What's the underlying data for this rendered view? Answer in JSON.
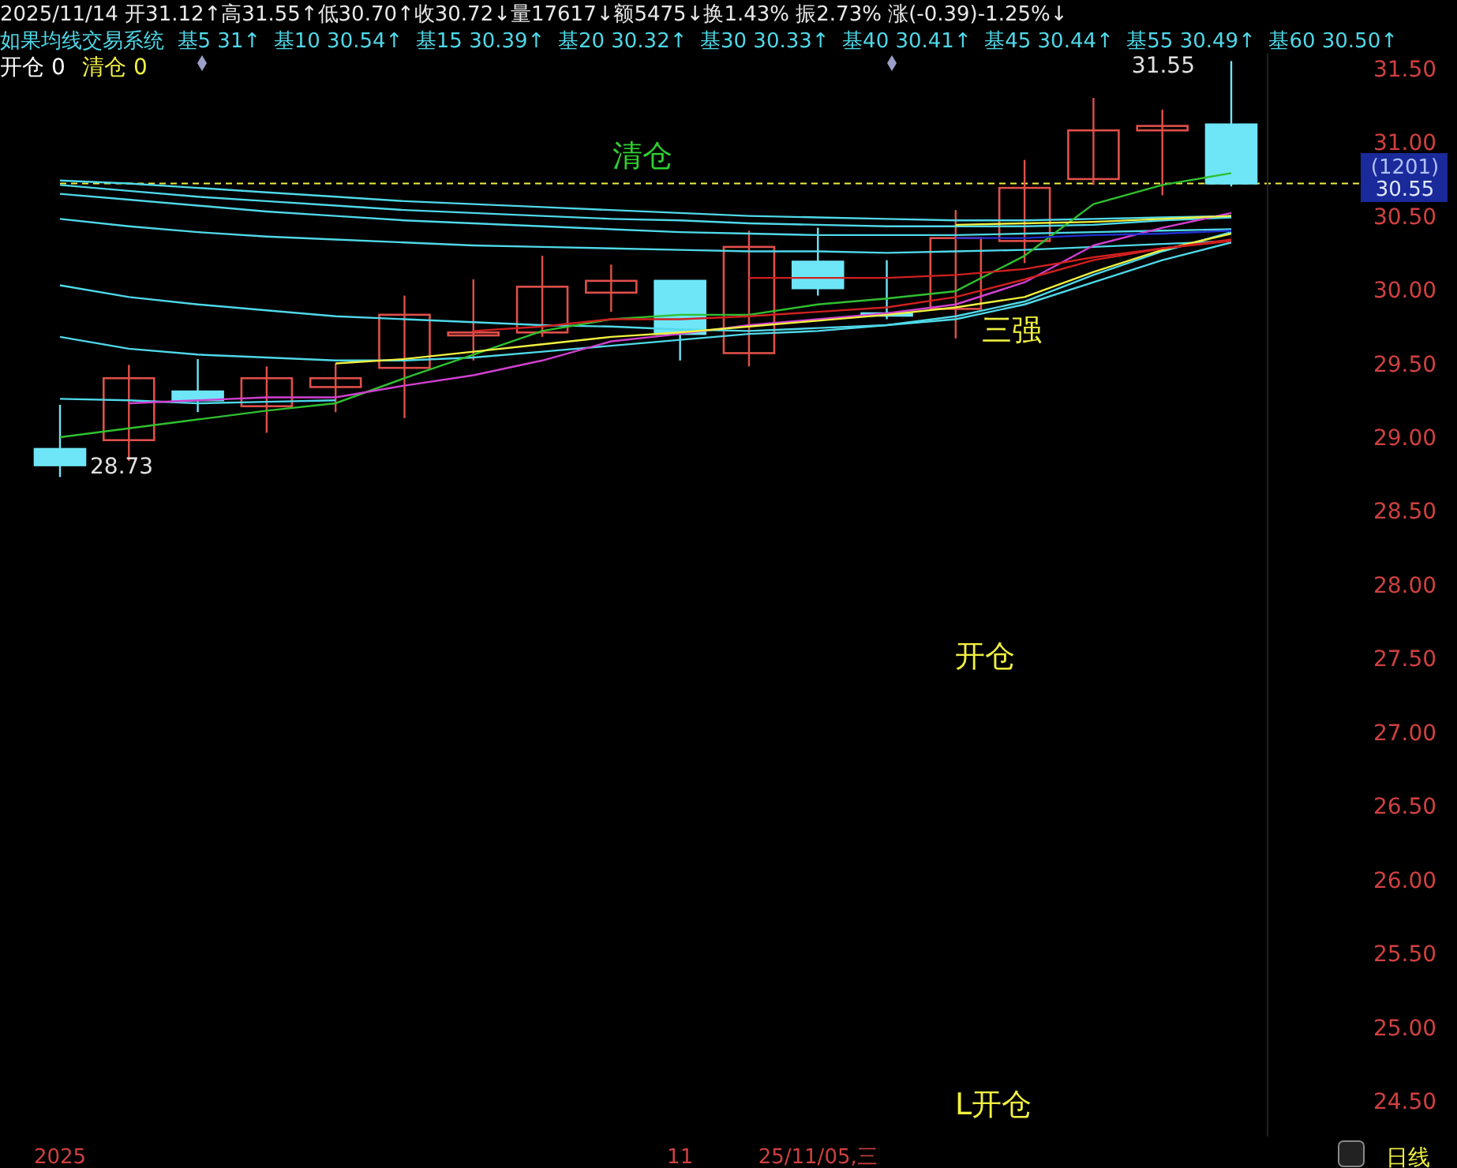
{
  "chart_data": {
    "type": "candlestick",
    "title": "2025/11/14 开31.12↑高31.55↑低30.70↑收30.72↓量17617↓额5475↓换1.43% 振2.73% 涨(-0.39)-1.25%↓",
    "subtitle": "如果均线交易系统  基5 31↑  基10 30.54↑  基15 30.39↑  基20 30.32↑  基30 30.33↑  基40 30.41↑  基45 30.44↑  基55 30.49↑  基60 30.50↑",
    "categories": [
      "2025",
      null,
      null,
      null,
      null,
      null,
      null,
      null,
      null,
      "11",
      null,
      "25/11/05,三",
      null,
      null,
      null,
      null,
      null,
      null
    ],
    "ohlc": [
      [
        28.92,
        29.22,
        28.73,
        28.81
      ],
      [
        28.98,
        29.49,
        28.84,
        29.4
      ],
      [
        29.31,
        29.53,
        29.17,
        29.25
      ],
      [
        29.21,
        29.48,
        29.03,
        29.4
      ],
      [
        29.34,
        29.5,
        29.17,
        29.4
      ],
      [
        29.47,
        29.96,
        29.13,
        29.83
      ],
      [
        29.69,
        30.07,
        29.52,
        29.71
      ],
      [
        29.71,
        30.23,
        29.68,
        30.02
      ],
      [
        29.98,
        30.17,
        29.85,
        30.06
      ],
      [
        30.06,
        30.06,
        29.52,
        29.7
      ],
      [
        29.57,
        30.4,
        29.48,
        30.29
      ],
      [
        30.19,
        30.42,
        29.96,
        30.01
      ],
      [
        29.84,
        30.2,
        29.8,
        29.83
      ],
      [
        29.87,
        30.54,
        29.67,
        30.35
      ],
      [
        30.33,
        30.88,
        30.18,
        30.69
      ],
      [
        30.75,
        31.3,
        30.71,
        31.08
      ],
      [
        31.08,
        31.22,
        30.64,
        31.11
      ],
      [
        31.12,
        31.55,
        30.7,
        30.72
      ]
    ],
    "colors": [
      "#6ee6f8",
      "#e0504a",
      "#6ee6f8",
      "#e0504a",
      "#e0504a",
      "#e0504a",
      "#e0504a",
      "#e0504a",
      "#e0504a",
      "#6ee6f8",
      "#e0504a",
      "#6ee6f8",
      "#6ee6f8",
      "#e0504a",
      "#e0504a",
      "#e0504a",
      "#e0504a",
      "#6ee6f8"
    ],
    "series": [
      {
        "type": "line",
        "color": "#4fd8e8",
        "values": [
          30.74,
          30.72,
          30.69,
          30.66,
          30.63,
          30.6,
          30.58,
          30.56,
          30.54,
          30.52,
          30.5,
          30.49,
          30.48,
          30.47,
          30.47,
          30.48,
          30.49,
          30.5
        ]
      },
      {
        "type": "line",
        "color": "#4fd8e8",
        "values": [
          30.71,
          30.67,
          30.63,
          30.6,
          30.57,
          30.54,
          30.52,
          30.5,
          30.48,
          30.47,
          30.45,
          30.44,
          30.43,
          30.43,
          30.43,
          30.44,
          30.47,
          30.49
        ]
      },
      {
        "type": "line",
        "color": "#4fd8e8",
        "values": [
          30.65,
          30.61,
          30.57,
          30.53,
          30.5,
          30.47,
          30.45,
          30.43,
          30.41,
          30.39,
          30.38,
          30.37,
          30.37,
          30.37,
          30.38,
          30.39,
          30.4,
          30.41
        ]
      },
      {
        "type": "line",
        "color": "#4fd8e8",
        "values": [
          30.48,
          30.43,
          30.39,
          30.36,
          30.34,
          30.32,
          30.3,
          30.29,
          30.28,
          30.27,
          30.26,
          30.26,
          30.25,
          30.26,
          30.27,
          30.29,
          30.31,
          30.33
        ]
      },
      {
        "type": "line",
        "color": "#4fd8e8",
        "values": [
          30.03,
          29.95,
          29.9,
          29.86,
          29.82,
          29.8,
          29.78,
          29.76,
          29.75,
          29.73,
          29.72,
          29.74,
          29.76,
          29.8,
          29.9,
          30.05,
          30.2,
          30.32
        ]
      },
      {
        "type": "line",
        "color": "#4fd8e8",
        "values": [
          29.68,
          29.6,
          29.56,
          29.54,
          29.52,
          29.52,
          29.54,
          29.58,
          29.62,
          29.66,
          29.7,
          29.72,
          29.76,
          29.82,
          29.92,
          30.1,
          30.26,
          30.39
        ]
      },
      {
        "type": "line",
        "color": "#4fd8e8",
        "values": [
          29.26,
          29.25,
          29.23,
          29.24,
          29.25,
          null,
          null,
          null,
          null,
          null,
          null,
          null,
          null,
          null,
          null,
          null,
          null,
          null
        ]
      },
      {
        "type": "line",
        "color": "#30c030",
        "values": [
          29.0,
          29.06,
          29.12,
          29.18,
          29.23,
          29.4,
          29.56,
          29.72,
          29.8,
          29.83,
          29.83,
          29.9,
          29.94,
          29.99,
          30.23,
          30.58,
          30.71,
          30.79
        ]
      },
      {
        "type": "line",
        "color": "#d040d0",
        "values": [
          null,
          29.23,
          29.25,
          29.27,
          29.27,
          29.35,
          29.42,
          29.52,
          29.65,
          29.7,
          29.76,
          29.8,
          29.84,
          29.9,
          30.05,
          30.3,
          30.42,
          30.52
        ]
      },
      {
        "type": "line",
        "color": "#f0f040",
        "values": [
          null,
          null,
          null,
          null,
          29.5,
          29.53,
          29.58,
          29.63,
          29.68,
          29.71,
          29.75,
          29.79,
          29.83,
          29.88,
          29.95,
          30.12,
          30.27,
          30.38
        ]
      },
      {
        "type": "line",
        "color": "#f0f040",
        "values": [
          null,
          null,
          null,
          null,
          null,
          null,
          null,
          null,
          null,
          null,
          null,
          null,
          null,
          30.44,
          30.45,
          30.46,
          30.48,
          30.5
        ]
      },
      {
        "type": "line",
        "color": "#d02020",
        "values": [
          null,
          null,
          null,
          null,
          null,
          null,
          29.72,
          29.75,
          29.8,
          29.8,
          29.82,
          29.85,
          29.88,
          29.95,
          30.07,
          30.2,
          30.28,
          30.34
        ]
      },
      {
        "type": "line",
        "color": "#d02020",
        "values": [
          null,
          null,
          null,
          null,
          null,
          null,
          null,
          null,
          null,
          null,
          30.08,
          30.08,
          30.08,
          30.1,
          30.14,
          30.22,
          30.28,
          30.33
        ]
      },
      {
        "type": "line",
        "color": "#2030d0",
        "values": [
          null,
          null,
          null,
          null,
          null,
          null,
          null,
          null,
          null,
          null,
          null,
          null,
          null,
          30.35,
          30.35,
          30.37,
          30.38,
          30.4
        ]
      }
    ],
    "ylim": [
      24.26,
      31.6
    ],
    "yticks": [
      {
        "value": 24.5,
        "label": "24.50"
      },
      {
        "value": 25,
        "label": "25.00"
      },
      {
        "value": 25.5,
        "label": "25.50"
      },
      {
        "value": 26,
        "label": "26.00"
      },
      {
        "value": 26.5,
        "label": "26.50"
      },
      {
        "value": 27,
        "label": "27.00"
      },
      {
        "value": 27.5,
        "label": "27.50"
      },
      {
        "value": 28,
        "label": "28.00"
      },
      {
        "value": 28.5,
        "label": "28.50"
      },
      {
        "value": 29,
        "label": "29.00"
      },
      {
        "value": 29.5,
        "label": "29.50"
      },
      {
        "value": 30,
        "label": "30.00"
      },
      {
        "value": 30.5,
        "label": "30.50"
      },
      {
        "value": 31,
        "label": "31.00"
      },
      {
        "value": 31.5,
        "label": "31.50"
      }
    ],
    "ref_lines": [
      {
        "axis": "y",
        "value": 30.72,
        "color": "#f0f040",
        "line_style": "dashed"
      }
    ],
    "annotations": [
      "开仓 0",
      "清仓 0",
      "清仓",
      {
        "text": "三强",
        "y": 29.83
      },
      "开仓",
      "L开仓",
      "31.55",
      "28.73",
      "(1201)",
      "30.55",
      "日线"
    ],
    "grid": false
  }
}
